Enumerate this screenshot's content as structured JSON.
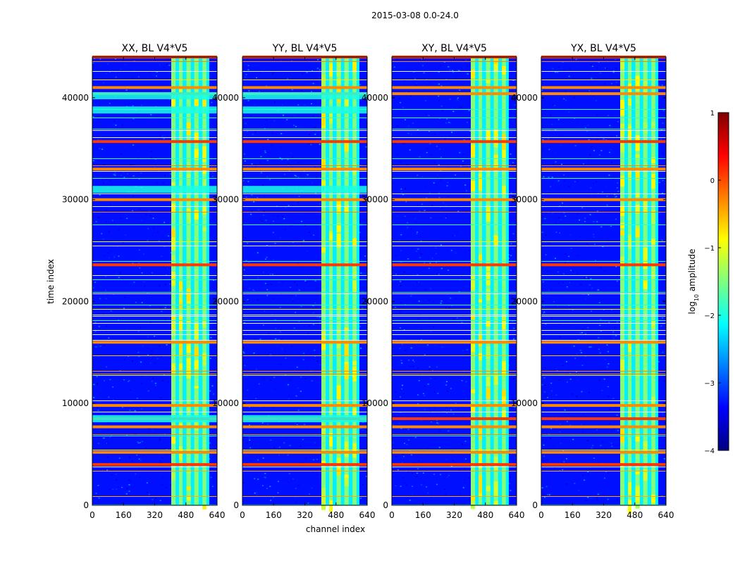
{
  "figure_title": "2015-03-08 0.0-24.0",
  "chart_data": {
    "type": "heatmap",
    "xlabel": "channel index",
    "ylabel": "time index",
    "xlim": [
      0,
      640
    ],
    "ylim": [
      0,
      44000
    ],
    "xticks": [
      0,
      160,
      320,
      480,
      640
    ],
    "yticks": [
      0,
      10000,
      20000,
      30000,
      40000
    ],
    "panels": [
      {
        "title": "XX, BL V4*V5",
        "pol": "XX"
      },
      {
        "title": "YY, BL V4*V5",
        "pol": "YY"
      },
      {
        "title": "XY, BL V4*V5",
        "pol": "XY"
      },
      {
        "title": "YX, BL V4*V5",
        "pol": "YX"
      }
    ],
    "colorbar": {
      "label": "log10 amplitude",
      "label_base": "log",
      "label_sub": "10",
      "label_rest": " amplitude",
      "range": [
        -4,
        1
      ],
      "ticks": [
        1,
        0,
        -1,
        -2,
        -3,
        -4
      ],
      "tick_labels": [
        "1",
        "0",
        "−1",
        "−2",
        "−3",
        "−4"
      ],
      "colormap": [
        "#00007f",
        "#0000ff",
        "#007fff",
        "#00ffff",
        "#7fff7f",
        "#ffff00",
        "#ff7f00",
        "#ff0000",
        "#7f0000"
      ]
    },
    "rfi_channel_band": [
      405,
      600
    ],
    "strong_rfi_time_bands": [
      44000,
      41000,
      40400,
      35700,
      33000,
      30000,
      23600,
      16000,
      9800,
      8500,
      7700,
      5200,
      4000
    ]
  }
}
